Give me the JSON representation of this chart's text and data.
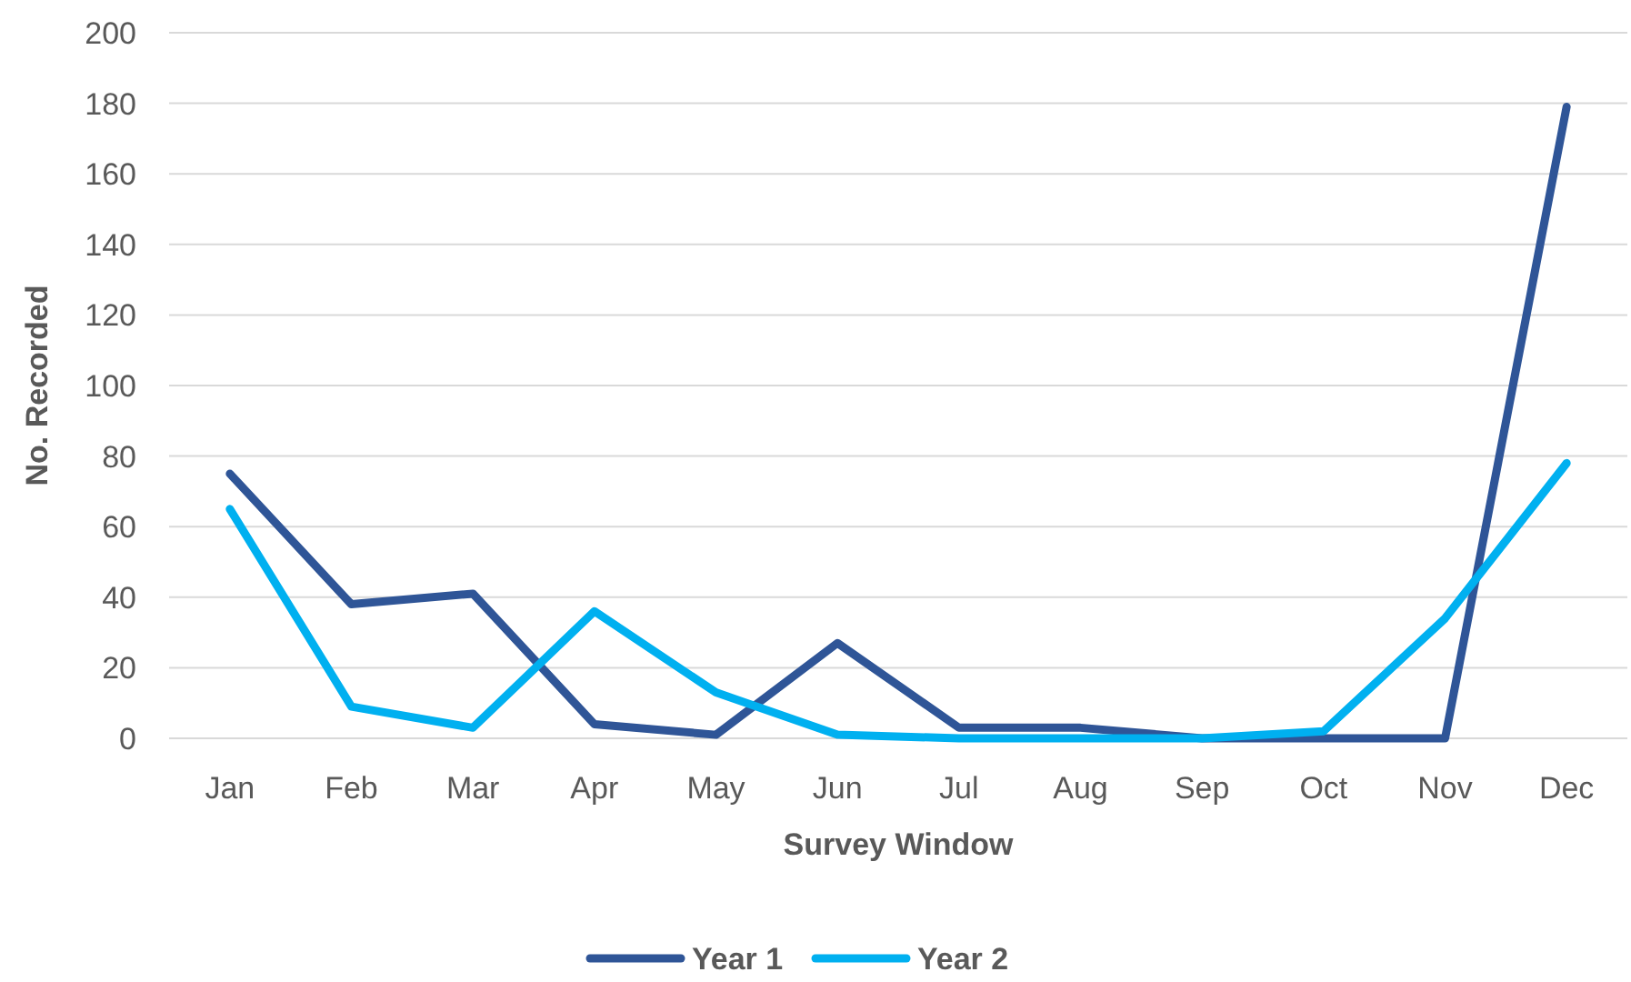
{
  "chart_data": {
    "type": "line",
    "xlabel": "Survey Window",
    "ylabel": "No. Recorded",
    "categories": [
      "Jan",
      "Feb",
      "Mar",
      "Apr",
      "May",
      "Jun",
      "Jul",
      "Aug",
      "Sep",
      "Oct",
      "Nov",
      "Dec"
    ],
    "series": [
      {
        "name": "Year 1",
        "color": "#2f5597",
        "values": [
          75,
          38,
          41,
          4,
          1,
          27,
          3,
          3,
          0,
          0,
          0,
          179
        ]
      },
      {
        "name": "Year 2",
        "color": "#00b0f0",
        "values": [
          65,
          9,
          3,
          36,
          13,
          1,
          0,
          0,
          0,
          2,
          34,
          78
        ]
      }
    ],
    "ylim": [
      0,
      200
    ],
    "yticks": [
      0,
      20,
      40,
      60,
      80,
      100,
      120,
      140,
      160,
      180,
      200
    ],
    "grid": "y",
    "legend": "bottom",
    "marker": "none",
    "line_style": "solid"
  }
}
